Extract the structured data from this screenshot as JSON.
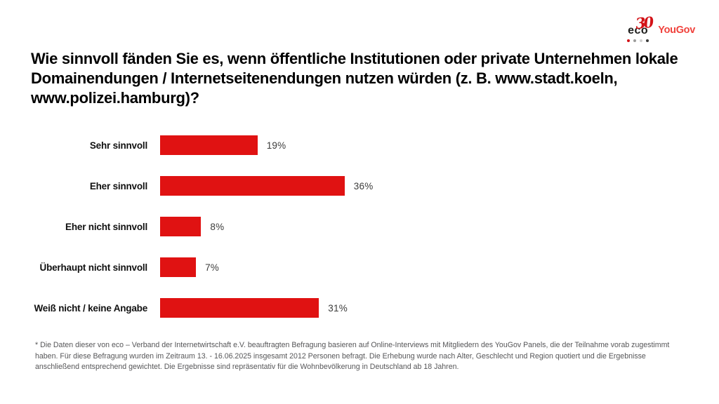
{
  "logos": {
    "eco_number": "30",
    "eco_text": "eco",
    "yougov_text": "YouGov",
    "eco_red": "#d31318",
    "eco_black": "#1d1d1b",
    "yougov_red": "#f0423c",
    "dot_colors": [
      "#d31318",
      "#9d9d9c",
      "#d0d0d0",
      "#3c3c3b"
    ]
  },
  "title": "Wie sinnvoll fänden Sie es, wenn öffentliche Institutionen oder private Unternehmen lokale Domainendungen / Internetseitenendungen nutzen würden (z. B. www.stadt.koeln, www.polizei.hamburg)?",
  "chart_data": {
    "type": "bar",
    "orientation": "horizontal",
    "categories": [
      "Sehr sinnvoll",
      "Eher sinnvoll",
      "Eher nicht sinnvoll",
      "Überhaupt nicht sinnvoll",
      "Weiß nicht / keine Angabe"
    ],
    "values": [
      19,
      36,
      8,
      7,
      31
    ],
    "value_labels": [
      "19%",
      "36%",
      "8%",
      "7%",
      "31%"
    ],
    "bar_color": "#e01212",
    "title": "Wie sinnvoll fänden Sie es, wenn öffentliche Institutionen oder private Unternehmen lokale Domainendungen / Internetseitenendungen nutzen würden (z. B. www.stadt.koeln, www.polizei.hamburg)?",
    "xlabel": "",
    "ylabel": "",
    "xlim": [
      0,
      40
    ],
    "grid": false,
    "legend": false,
    "axes_hidden": true
  },
  "footnote": "* Die Daten dieser von eco – Verband der Internetwirtschaft e.V. beauftragten Befragung basieren auf Online-Interviews mit Mitgliedern des YouGov Panels, die der Teilnahme vorab zugestimmt haben. Für diese Befragung wurden im Zeitraum 13. - 16.06.2025 insgesamt 2012 Personen befragt. Die Erhebung wurde nach Alter, Geschlecht und Region quotiert und die Ergebnisse anschließend entsprechend gewichtet. Die Ergebnisse sind repräsentativ für die Wohnbevölkerung in Deutschland ab 18 Jahren."
}
